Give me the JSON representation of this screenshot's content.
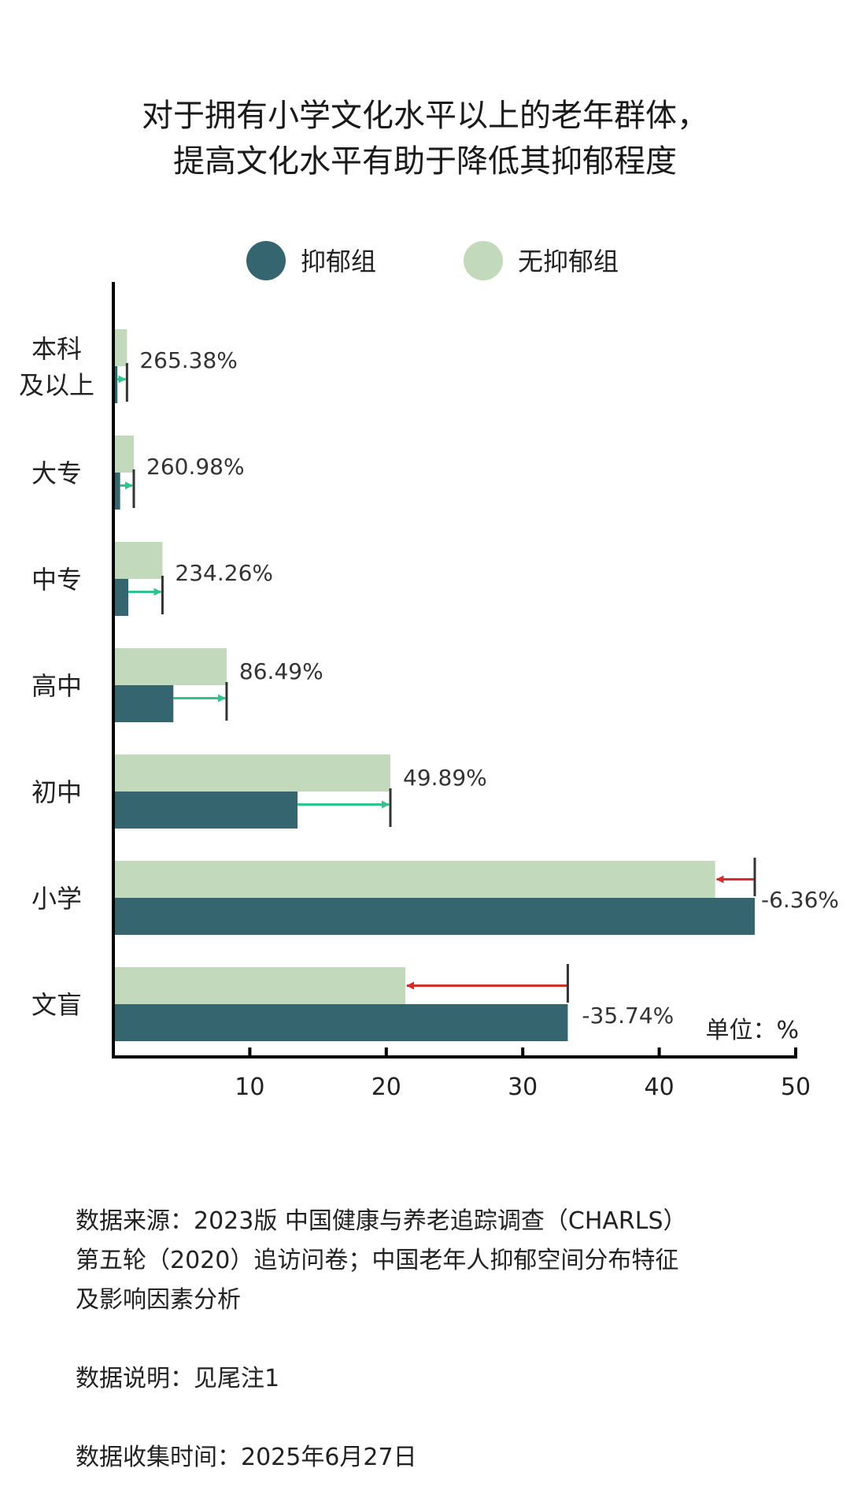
{
  "chart_data": {
    "type": "bar",
    "orientation": "horizontal",
    "title": "对于拥有小学文化水平以上的老年群体，\n提高文化水平有助于降低其抑郁程度",
    "unit_label": "单位：%",
    "categories": [
      "本科\n及以上",
      "大专",
      "中专",
      "高中",
      "初中",
      "小学",
      "文盲"
    ],
    "series": [
      {
        "name": "抑郁组",
        "color": "#356670",
        "values": [
          0.3,
          0.5,
          1.1,
          4.4,
          13.5,
          47.0,
          33.3
        ]
      },
      {
        "name": "无抑郁组",
        "color": "#c2d9bc",
        "values": [
          1.0,
          1.5,
          3.6,
          8.3,
          20.3,
          44.1,
          21.4
        ]
      }
    ],
    "change_labels": [
      "265.38%",
      "260.98%",
      "234.26%",
      "86.49%",
      "49.89%",
      "-6.36%",
      "-35.74%"
    ],
    "change_colors": {
      "increase": "#2fc48d",
      "decrease": "#d92b2b"
    },
    "xlim": [
      0,
      50
    ],
    "xticks": [
      10,
      20,
      30,
      40,
      50
    ],
    "legend_position": "top",
    "grid": false
  },
  "footer": {
    "source": "数据来源：2023版 中国健康与养老追踪调查（CHARLS）\n第五轮（2020）追访问卷；中国老年人抑郁空间分布特征\n及影响因素分析",
    "note": "数据说明：见尾注1",
    "date": "数据收集时间：2025年6月27日"
  }
}
